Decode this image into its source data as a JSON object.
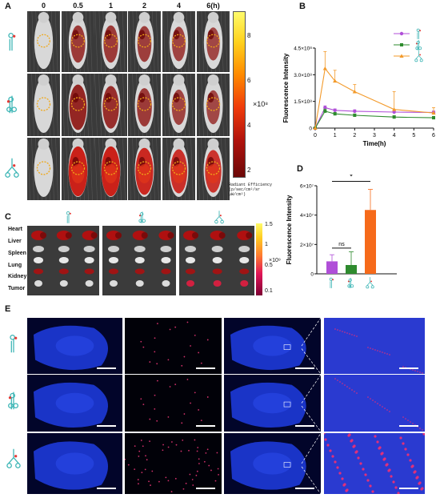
{
  "panels": {
    "A": "A",
    "B": "B",
    "C": "C",
    "D": "D",
    "E": "E"
  },
  "panelA": {
    "time_labels": [
      "0",
      "0.5",
      "1",
      "2",
      "4",
      "6(h)"
    ],
    "colorbar_ticks": [
      "8",
      "6",
      "4",
      "2"
    ],
    "colorbar_scale": "×10⁸",
    "colorbar_title_line1": "Radiant Efficiency",
    "colorbar_title_line2": "(p/sec/cm²/sr",
    "colorbar_title_line3": "μW/cm²)"
  },
  "panelB": {
    "chart_data": {
      "type": "line",
      "xlabel": "Time(h)",
      "ylabel": "Fluorescence Intensity",
      "x": [
        0,
        0.5,
        1,
        2,
        4,
        6
      ],
      "xlim": [
        0,
        6
      ],
      "ylim": [
        0,
        450000000
      ],
      "xticks": [
        "0",
        "1",
        "2",
        "3",
        "4",
        "5",
        "6"
      ],
      "yticks": [
        "0",
        "1.5×10⁸",
        "3.0×10⁸",
        "4.5×10⁸"
      ],
      "series": [
        {
          "color": "#b04fd8",
          "marker": "circle",
          "values": [
            0,
            115000000,
            100000000,
            95000000,
            90000000,
            88000000
          ],
          "err": [
            0,
            10000000,
            8000000,
            8000000,
            8000000,
            8000000
          ]
        },
        {
          "color": "#2e8b2e",
          "marker": "square",
          "values": [
            0,
            95000000,
            80000000,
            72000000,
            62000000,
            58000000
          ],
          "err": [
            0,
            12000000,
            8000000,
            8000000,
            8000000,
            8000000
          ]
        },
        {
          "color": "#f39a2a",
          "marker": "triangle",
          "values": [
            0,
            335000000,
            265000000,
            205000000,
            105000000,
            85000000
          ],
          "err": [
            0,
            95000000,
            60000000,
            40000000,
            100000000,
            30000000
          ]
        }
      ]
    }
  },
  "panelC": {
    "organs": [
      "Heart",
      "Liver",
      "Spleen",
      "Lung",
      "Kidney",
      "Tumor"
    ],
    "colorbar_ticks": [
      "1.5",
      "1",
      "0.5",
      "0.1"
    ],
    "colorbar_scale": "×10⁹"
  },
  "panelD": {
    "chart_data": {
      "type": "bar",
      "ylabel": "Fluorescence Intensity",
      "ylim": [
        0,
        60000000
      ],
      "yticks": [
        "0",
        "2×10⁷",
        "4×10⁷",
        "6×10⁷"
      ],
      "values": [
        8500000,
        6000000,
        43500000
      ],
      "err": [
        4500000,
        9000000,
        14000000
      ],
      "colors": [
        "#b04fd8",
        "#2e8b2e",
        "#f66a1a"
      ],
      "annotations": [
        "ns",
        "*"
      ]
    }
  },
  "colors": {
    "probe_teal": "#3bb5b5",
    "probe_red": "#e53935",
    "circle_dash": "#f0a818"
  }
}
